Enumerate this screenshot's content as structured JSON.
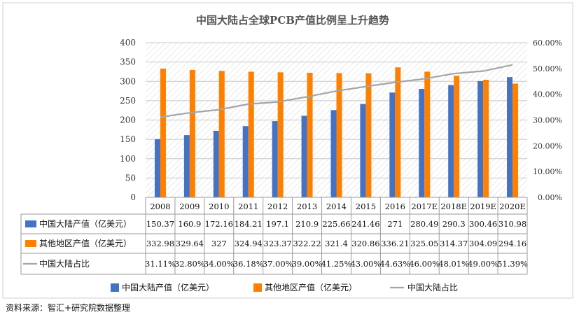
{
  "chart_data": {
    "type": "bar",
    "title": "中国大陆占全球PCB产值比例呈上升趋势",
    "categories": [
      "2008",
      "2009",
      "2010",
      "2011",
      "2012",
      "2013",
      "2014",
      "2015",
      "2016",
      "2017E",
      "2018E",
      "2019E",
      "2020E"
    ],
    "y_left": {
      "ticks": [
        "0",
        "50",
        "100",
        "150",
        "200",
        "250",
        "300",
        "350",
        "400"
      ],
      "ylim": [
        0,
        400
      ]
    },
    "y_right": {
      "ticks": [
        "0.00%",
        "10.00%",
        "20.00%",
        "30.00%",
        "40.00%",
        "50.00%",
        "60.00%"
      ],
      "ylim": [
        0,
        60
      ]
    },
    "series": [
      {
        "name": "中国大陆产值（亿美元）",
        "kind": "bar",
        "axis": "left",
        "color": "#4472C4",
        "values": [
          150.37,
          160.9,
          172.16,
          184.21,
          197.1,
          210.9,
          225.66,
          241.46,
          271,
          280.49,
          290.3,
          300.46,
          310.98
        ],
        "labels": [
          "150.37",
          "160.9",
          "172.16",
          "184.21",
          "197.1",
          "210.9",
          "225.66",
          "241.46",
          "271",
          "280.49",
          "290.3",
          "300.46",
          "310.98"
        ]
      },
      {
        "name": "其他地区产值（亿美元）",
        "kind": "bar",
        "axis": "left",
        "color": "#FF8000",
        "values": [
          332.98,
          329.64,
          327,
          324.94,
          323.37,
          322.22,
          321.4,
          320.86,
          336.21,
          325.05,
          314.37,
          304.09,
          294.16
        ],
        "labels": [
          "332.98",
          "329.64",
          "327",
          "324.94",
          "323.37",
          "322.22",
          "321.4",
          "320.86",
          "336.21",
          "325.05",
          "314.37",
          "304.09",
          "294.16"
        ]
      },
      {
        "name": "中国大陆占比",
        "kind": "line",
        "axis": "right",
        "color": "#A5A5A5",
        "values": [
          31.11,
          32.8,
          34.0,
          36.18,
          37.0,
          39.0,
          41.25,
          43.0,
          44.63,
          46.0,
          48.01,
          49.0,
          51.39
        ],
        "labels": [
          "31.11%",
          "32.80%",
          "34.00%",
          "36.18%",
          "37.00%",
          "39.00%",
          "41.25%",
          "43.00%",
          "44.63%",
          "46.00%",
          "48.01%",
          "49.00%",
          "51.39%"
        ]
      }
    ],
    "legend_placement": "bottom",
    "grid": "hatched plot background"
  },
  "source_note": "资料来源：智汇+研究院数据整理"
}
